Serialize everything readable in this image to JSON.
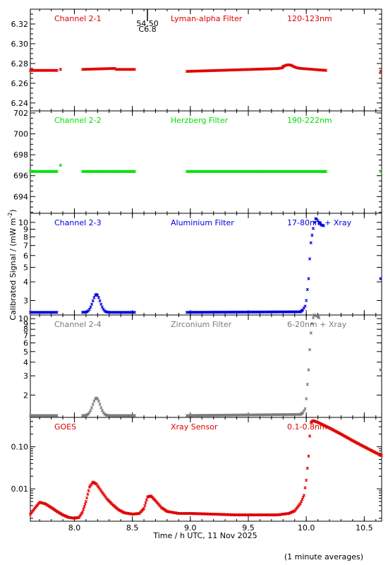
{
  "xlabel": "Time / h UTC, 11 Nov 2025",
  "ylabel": "Calibrated Signal / (mW m",
  "ylabel_sup": "-2",
  "ylabel_close": ")",
  "footnote": "(1 minute averages)",
  "marker_top": "54.50",
  "marker_bottom": "C6.8",
  "chart_data": [
    {
      "type": "scatter",
      "id": "p1",
      "label_left": "Channel 2-1",
      "label_mid": "Lyman-alpha Filter",
      "label_right": "120-123nm",
      "color": "#e00000",
      "xlim": [
        7.62,
        10.65
      ],
      "ylim": [
        6.232,
        6.335
      ],
      "yscale": "linear",
      "yticks": [
        6.24,
        6.26,
        6.28,
        6.3,
        6.32
      ],
      "ytick_labels": [
        "6.24",
        "6.26",
        "6.28",
        "6.30",
        "6.32"
      ],
      "segments": [
        {
          "x": [
            7.62,
            7.85
          ],
          "y": [
            6.273,
            6.273
          ]
        },
        {
          "x": [
            7.88,
            7.88
          ],
          "y": [
            6.274,
            6.274
          ]
        },
        {
          "x": [
            8.07,
            8.35
          ],
          "y": [
            6.274,
            6.275
          ]
        },
        {
          "x": [
            8.36,
            8.52
          ],
          "y": [
            6.274,
            6.274
          ]
        },
        {
          "x": [
            8.97,
            9.8
          ],
          "y": [
            6.272,
            6.275
          ]
        },
        {
          "x": [
            9.8,
            9.95
          ],
          "y": [
            6.276,
            6.275
          ]
        },
        {
          "x": [
            9.95,
            10.17
          ],
          "y": [
            6.275,
            6.273
          ]
        }
      ],
      "bumps": [
        {
          "x": 9.85,
          "dy": 0.003,
          "w": 0.05
        }
      ],
      "outliers": [
        {
          "x": 10.64,
          "y": 6.272
        }
      ]
    },
    {
      "type": "scatter",
      "id": "p2",
      "label_left": "Channel 2-2",
      "label_mid": "Herzberg Filter",
      "label_right": "190-222nm",
      "color": "#00e000",
      "xlim": [
        7.62,
        10.65
      ],
      "ylim": [
        692.4,
        702.2
      ],
      "yscale": "linear",
      "yticks": [
        694,
        696,
        698,
        700,
        702
      ],
      "ytick_labels": [
        "694",
        "696",
        "698",
        "700",
        "702"
      ],
      "segments": [
        {
          "x": [
            7.62,
            7.85
          ],
          "y": [
            696.4,
            696.4
          ]
        },
        {
          "x": [
            8.07,
            8.52
          ],
          "y": [
            696.4,
            696.4
          ]
        },
        {
          "x": [
            8.97,
            10.17
          ],
          "y": [
            696.4,
            696.4
          ]
        }
      ],
      "bumps": [],
      "outliers": [
        {
          "x": 7.88,
          "y": 697.0
        },
        {
          "x": 10.64,
          "y": 696.4
        }
      ]
    },
    {
      "type": "scatter",
      "id": "p3",
      "label_left": "Channel 2-3",
      "label_mid": "Aluminium Filter",
      "label_right": "17-80nm + Xray",
      "color": "#0000e0",
      "xlim": [
        7.62,
        10.65
      ],
      "ylim": [
        2.4,
        11.5
      ],
      "yscale": "log",
      "yticks": [
        3,
        4,
        5,
        6,
        7,
        8,
        9,
        10
      ],
      "ytick_labels": [
        "3",
        "4",
        "5",
        "6",
        "7",
        "8",
        "9",
        "10"
      ],
      "segments": [
        {
          "x": [
            7.62,
            7.85
          ],
          "y": [
            2.5,
            2.5
          ]
        },
        {
          "x": [
            8.07,
            8.52
          ],
          "y": [
            2.5,
            2.5
          ]
        },
        {
          "x": [
            8.97,
            9.95
          ],
          "y": [
            2.5,
            2.52
          ]
        }
      ],
      "bumps": [
        {
          "x": 8.19,
          "dy": 0.12,
          "w": 0.045
        }
      ],
      "curve": [
        [
          9.95,
          2.52
        ],
        [
          9.97,
          2.6
        ],
        [
          9.99,
          2.75
        ],
        [
          10.0,
          3.0
        ],
        [
          10.02,
          4.2
        ],
        [
          10.03,
          5.7
        ],
        [
          10.04,
          7.3
        ],
        [
          10.05,
          8.2
        ],
        [
          10.06,
          9.1
        ],
        [
          10.07,
          10.0
        ],
        [
          10.08,
          10.6
        ],
        [
          10.09,
          10.5
        ],
        [
          10.11,
          10.0
        ],
        [
          10.13,
          9.6
        ],
        [
          10.15,
          9.5
        ]
      ],
      "outliers": [
        {
          "x": 10.64,
          "y": 4.2
        }
      ]
    },
    {
      "type": "scatter",
      "id": "p4",
      "label_left": "Channel 2-4",
      "label_mid": "Zirconium Filter",
      "label_right": "6-20nm + Xray",
      "color": "#7a7a7a",
      "xlim": [
        7.62,
        10.65
      ],
      "ylim": [
        1.25,
        10.8
      ],
      "yscale": "log",
      "yticks": [
        2,
        3,
        4,
        5,
        6,
        7,
        8,
        9,
        10
      ],
      "ytick_labels": [
        "2",
        "3",
        "4",
        "5",
        "6",
        "7",
        "8",
        "9",
        "10"
      ],
      "segments": [
        {
          "x": [
            7.62,
            7.85
          ],
          "y": [
            1.3,
            1.3
          ]
        },
        {
          "x": [
            8.07,
            8.52
          ],
          "y": [
            1.3,
            1.3
          ]
        },
        {
          "x": [
            8.97,
            9.95
          ],
          "y": [
            1.3,
            1.33
          ]
        }
      ],
      "bumps": [
        {
          "x": 8.19,
          "dy": 0.16,
          "w": 0.045
        }
      ],
      "curve": [
        [
          9.95,
          1.33
        ],
        [
          9.97,
          1.38
        ],
        [
          9.99,
          1.5
        ],
        [
          10.0,
          1.85
        ],
        [
          10.02,
          3.4
        ],
        [
          10.03,
          5.2
        ],
        [
          10.04,
          7.4
        ],
        [
          10.05,
          9.0
        ],
        [
          10.06,
          10.2
        ],
        [
          10.07,
          10.8
        ],
        [
          10.09,
          10.6
        ],
        [
          10.11,
          10.2
        ]
      ],
      "outliers": [
        {
          "x": 10.64,
          "y": 3.4
        }
      ]
    },
    {
      "type": "scatter",
      "id": "p5",
      "label_left": "GOES",
      "label_mid": "Xray Sensor",
      "label_right": "0.1-0.8nm",
      "color": "#e00000",
      "xlim": [
        7.62,
        10.65
      ],
      "ylim": [
        0.0017,
        0.5
      ],
      "yscale": "log",
      "yticks": [
        0.01,
        0.1
      ],
      "ytick_labels": [
        "0.01",
        "0.10"
      ],
      "minor_ticks": [
        0.002,
        0.003,
        0.004,
        0.005,
        0.006,
        0.007,
        0.008,
        0.009,
        0.02,
        0.03,
        0.04,
        0.05,
        0.06,
        0.07,
        0.08,
        0.09,
        0.2,
        0.3,
        0.4
      ],
      "curve": [
        [
          7.62,
          0.0025
        ],
        [
          7.66,
          0.0035
        ],
        [
          7.7,
          0.0048
        ],
        [
          7.75,
          0.0044
        ],
        [
          7.8,
          0.0036
        ],
        [
          7.85,
          0.0029
        ],
        [
          7.9,
          0.0024
        ],
        [
          7.95,
          0.0021
        ],
        [
          8.0,
          0.002
        ],
        [
          8.04,
          0.0021
        ],
        [
          8.07,
          0.0028
        ],
        [
          8.1,
          0.005
        ],
        [
          8.13,
          0.011
        ],
        [
          8.16,
          0.0145
        ],
        [
          8.19,
          0.013
        ],
        [
          8.23,
          0.009
        ],
        [
          8.28,
          0.0058
        ],
        [
          8.33,
          0.0042
        ],
        [
          8.38,
          0.0032
        ],
        [
          8.43,
          0.0027
        ],
        [
          8.5,
          0.0025
        ],
        [
          8.56,
          0.0026
        ],
        [
          8.6,
          0.0034
        ],
        [
          8.63,
          0.0064
        ],
        [
          8.66,
          0.0068
        ],
        [
          8.7,
          0.0052
        ],
        [
          8.75,
          0.0036
        ],
        [
          8.8,
          0.0029
        ],
        [
          8.9,
          0.0026
        ],
        [
          9.0,
          0.0026
        ],
        [
          9.2,
          0.0025
        ],
        [
          9.4,
          0.0024
        ],
        [
          9.6,
          0.0024
        ],
        [
          9.75,
          0.0024
        ],
        [
          9.85,
          0.0026
        ],
        [
          9.9,
          0.003
        ],
        [
          9.95,
          0.0045
        ],
        [
          9.98,
          0.007
        ],
        [
          10.0,
          0.016
        ],
        [
          10.02,
          0.06
        ],
        [
          10.03,
          0.18
        ],
        [
          10.04,
          0.38
        ],
        [
          10.06,
          0.42
        ],
        [
          10.1,
          0.38
        ],
        [
          10.2,
          0.28
        ],
        [
          10.3,
          0.2
        ],
        [
          10.4,
          0.14
        ],
        [
          10.5,
          0.1
        ],
        [
          10.6,
          0.072
        ],
        [
          10.65,
          0.062
        ]
      ],
      "outliers": []
    }
  ],
  "x_ticks": [
    8.0,
    8.5,
    9.0,
    9.5,
    10.0,
    10.5
  ],
  "x_tick_labels": [
    "8.0",
    "8.5",
    "9.0",
    "9.5",
    "10.0",
    "10.5"
  ],
  "marker_x": 8.63
}
